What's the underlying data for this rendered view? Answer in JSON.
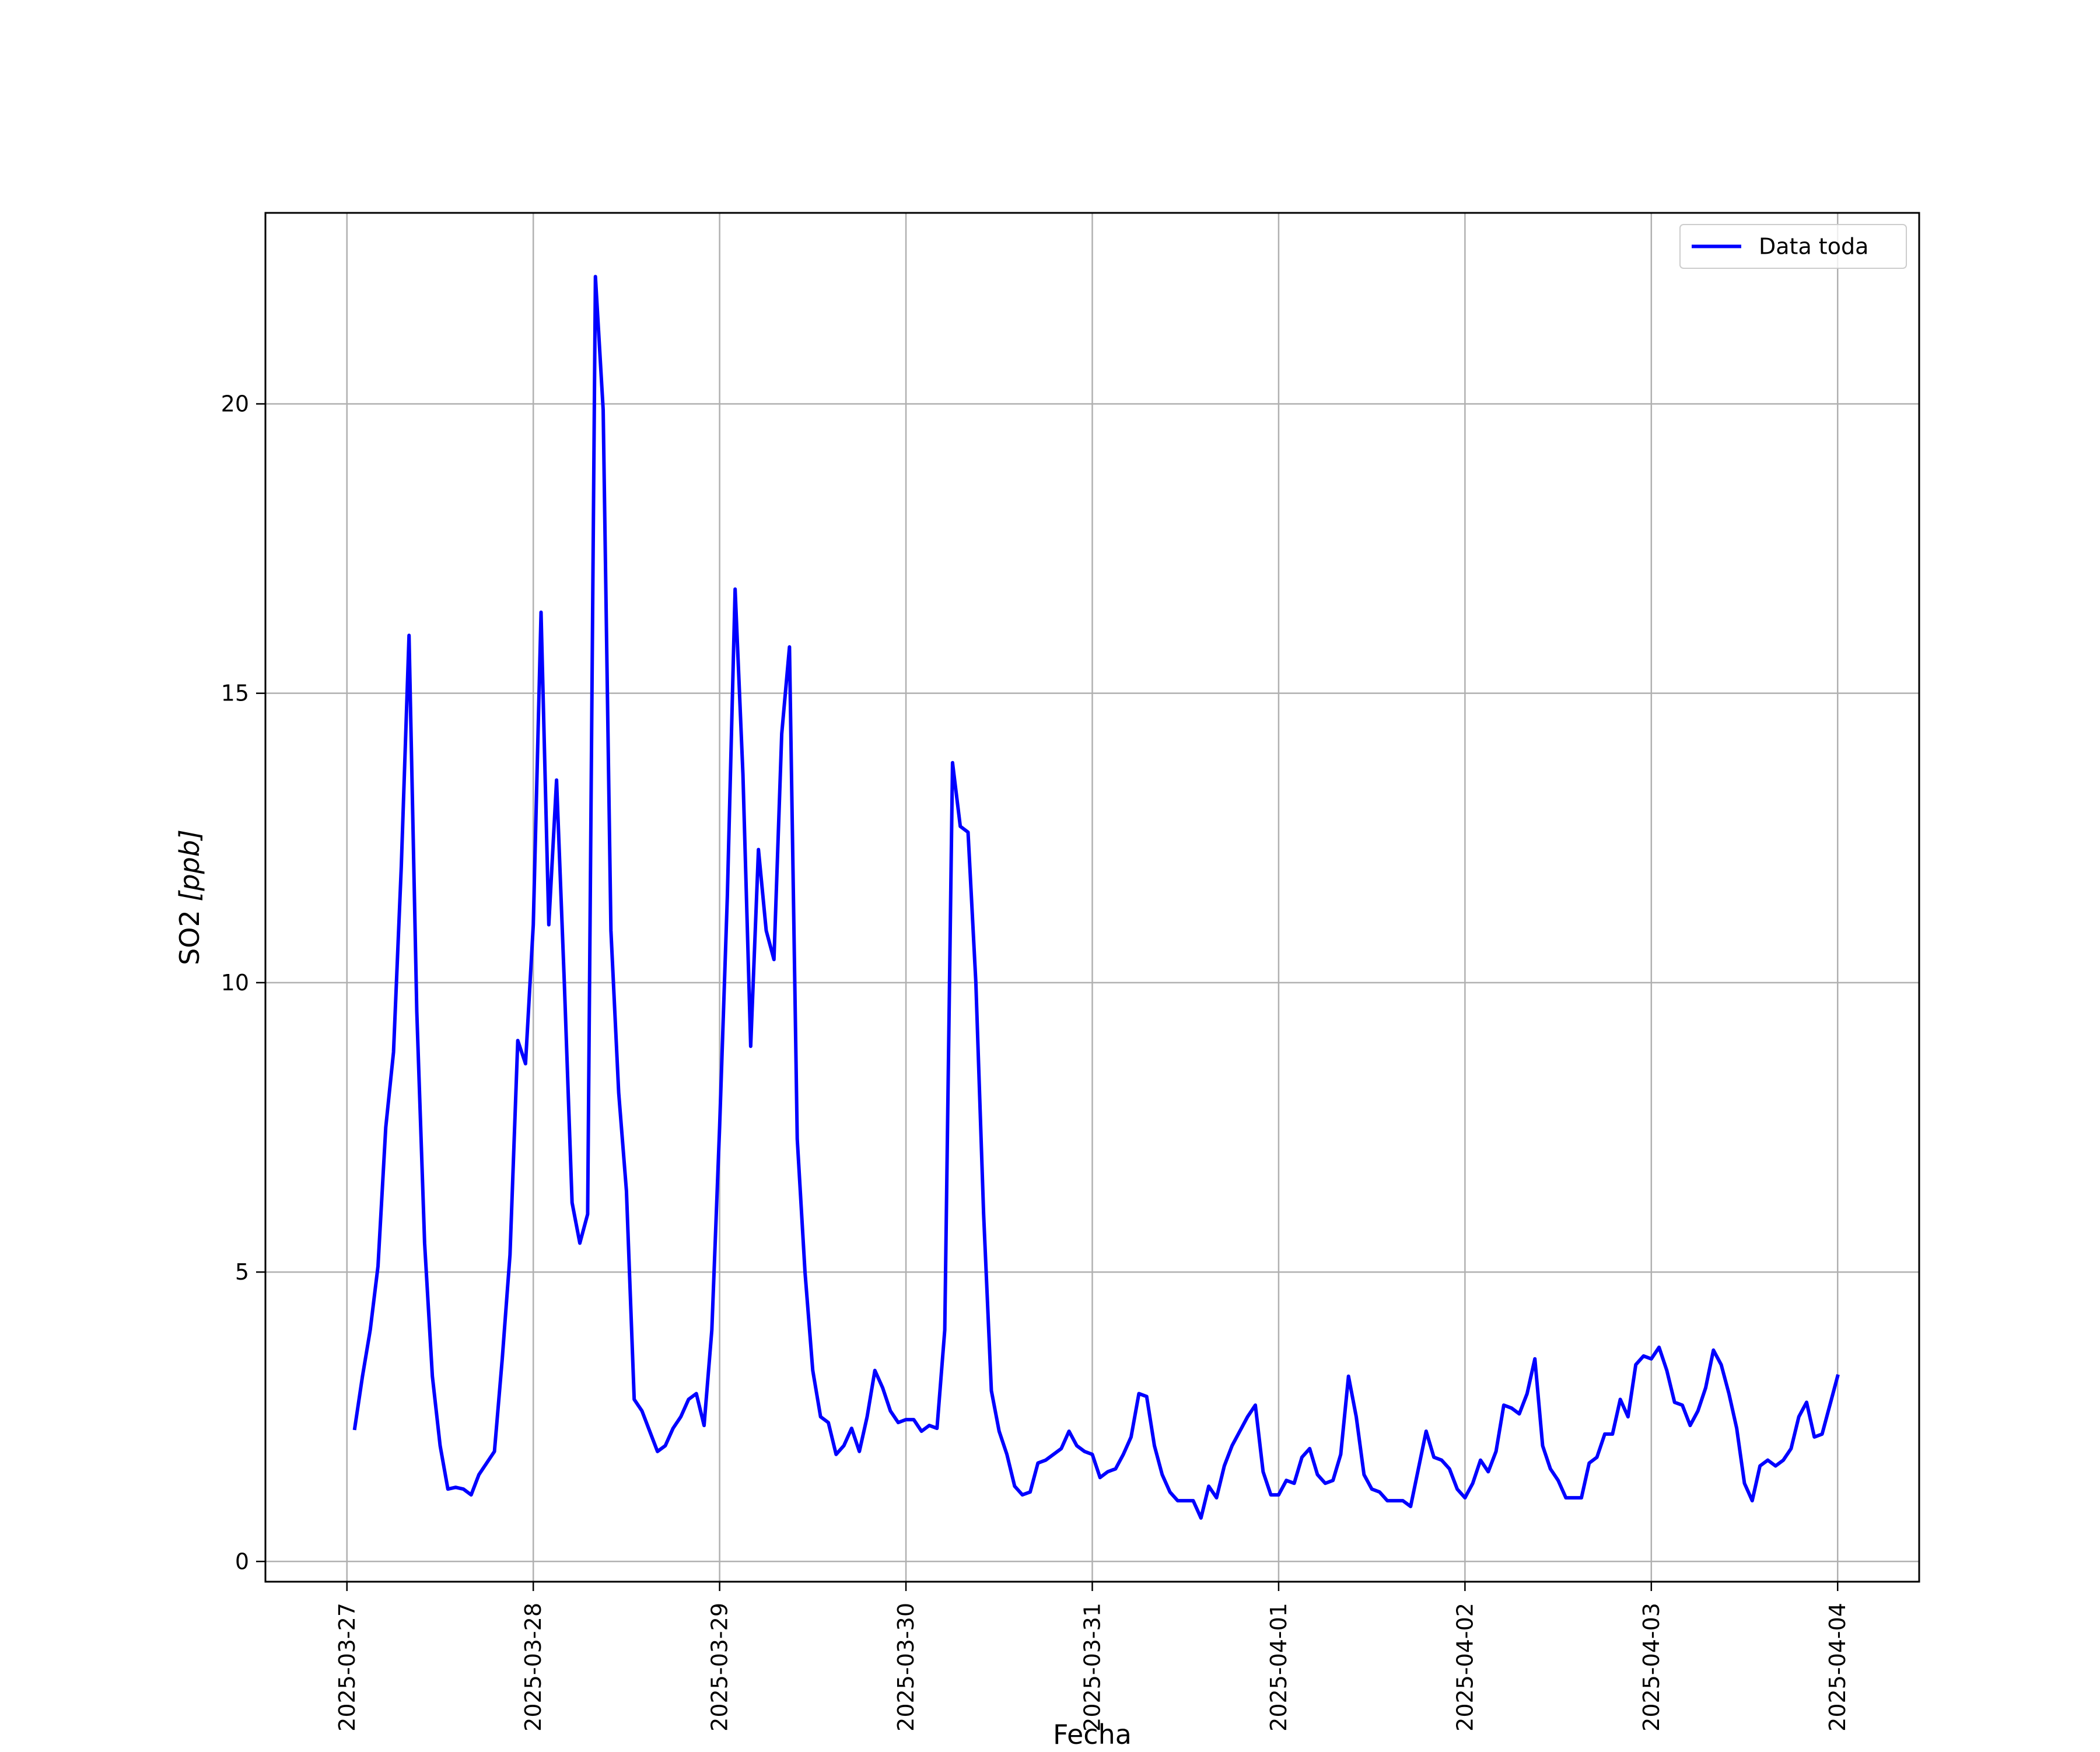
{
  "chart_data": {
    "type": "line",
    "title": "",
    "xlabel": "Fecha",
    "ylabel_main": "SO2 ",
    "ylabel_unit": "[ppb]",
    "xlim": [
      "2025-03-26 13:30",
      "2025-04-04 10:30"
    ],
    "ylim": [
      -0.35,
      23.3
    ],
    "x_ticks": [
      "2025-03-27",
      "2025-03-28",
      "2025-03-29",
      "2025-03-30",
      "2025-03-31",
      "2025-04-01",
      "2025-04-02",
      "2025-04-03",
      "2025-04-04"
    ],
    "y_ticks": [
      0,
      5,
      10,
      15,
      20
    ],
    "grid": true,
    "legend_position": "top-right",
    "colors": {
      "line": "#0000ff",
      "grid": "#b0b0b0",
      "axes": "#000000"
    },
    "series": [
      {
        "name": "Data toda",
        "x": [
          "2025-03-27 01:00",
          "2025-03-27 02:00",
          "2025-03-27 03:00",
          "2025-03-27 04:00",
          "2025-03-27 05:00",
          "2025-03-27 06:00",
          "2025-03-27 07:00",
          "2025-03-27 08:00",
          "2025-03-27 09:00",
          "2025-03-27 10:00",
          "2025-03-27 11:00",
          "2025-03-27 12:00",
          "2025-03-27 13:00",
          "2025-03-27 14:00",
          "2025-03-27 15:00",
          "2025-03-27 16:00",
          "2025-03-27 17:00",
          "2025-03-27 18:00",
          "2025-03-27 19:00",
          "2025-03-27 20:00",
          "2025-03-27 21:00",
          "2025-03-27 22:00",
          "2025-03-27 23:00",
          "2025-03-28 00:00",
          "2025-03-28 01:00",
          "2025-03-28 02:00",
          "2025-03-28 03:00",
          "2025-03-28 04:00",
          "2025-03-28 05:00",
          "2025-03-28 06:00",
          "2025-03-28 07:00",
          "2025-03-28 08:00",
          "2025-03-28 09:00",
          "2025-03-28 10:00",
          "2025-03-28 11:00",
          "2025-03-28 12:00",
          "2025-03-28 13:00",
          "2025-03-28 14:00",
          "2025-03-28 15:00",
          "2025-03-28 16:00",
          "2025-03-28 17:00",
          "2025-03-28 18:00",
          "2025-03-28 19:00",
          "2025-03-28 20:00",
          "2025-03-28 21:00",
          "2025-03-28 22:00",
          "2025-03-28 23:00",
          "2025-03-29 00:00",
          "2025-03-29 01:00",
          "2025-03-29 02:00",
          "2025-03-29 03:00",
          "2025-03-29 04:00",
          "2025-03-29 05:00",
          "2025-03-29 06:00",
          "2025-03-29 07:00",
          "2025-03-29 08:00",
          "2025-03-29 09:00",
          "2025-03-29 10:00",
          "2025-03-29 11:00",
          "2025-03-29 12:00",
          "2025-03-29 13:00",
          "2025-03-29 14:00",
          "2025-03-29 15:00",
          "2025-03-29 16:00",
          "2025-03-29 17:00",
          "2025-03-29 18:00",
          "2025-03-29 19:00",
          "2025-03-29 20:00",
          "2025-03-29 21:00",
          "2025-03-29 22:00",
          "2025-03-29 23:00",
          "2025-03-30 00:00",
          "2025-03-30 01:00",
          "2025-03-30 02:00",
          "2025-03-30 03:00",
          "2025-03-30 04:00",
          "2025-03-30 05:00",
          "2025-03-30 06:00",
          "2025-03-30 07:00",
          "2025-03-30 08:00",
          "2025-03-30 09:00",
          "2025-03-30 10:00",
          "2025-03-30 11:00",
          "2025-03-30 12:00",
          "2025-03-30 13:00",
          "2025-03-30 14:00",
          "2025-03-30 15:00",
          "2025-03-30 16:00",
          "2025-03-30 17:00",
          "2025-03-30 18:00",
          "2025-03-30 19:00",
          "2025-03-30 20:00",
          "2025-03-30 21:00",
          "2025-03-30 22:00",
          "2025-03-30 23:00",
          "2025-03-31 00:00",
          "2025-03-31 01:00",
          "2025-03-31 02:00",
          "2025-03-31 03:00",
          "2025-03-31 04:00",
          "2025-03-31 05:00",
          "2025-03-31 06:00",
          "2025-03-31 07:00",
          "2025-03-31 08:00",
          "2025-03-31 09:00",
          "2025-03-31 10:00",
          "2025-03-31 11:00",
          "2025-03-31 12:00",
          "2025-03-31 13:00",
          "2025-03-31 14:00",
          "2025-03-31 15:00",
          "2025-03-31 16:00",
          "2025-03-31 17:00",
          "2025-03-31 18:00",
          "2025-03-31 19:00",
          "2025-03-31 20:00",
          "2025-03-31 21:00",
          "2025-03-31 22:00",
          "2025-03-31 23:00",
          "2025-04-01 00:00",
          "2025-04-01 01:00",
          "2025-04-01 02:00",
          "2025-04-01 03:00",
          "2025-04-01 04:00",
          "2025-04-01 05:00",
          "2025-04-01 06:00",
          "2025-04-01 07:00",
          "2025-04-01 08:00",
          "2025-04-01 09:00",
          "2025-04-01 10:00",
          "2025-04-01 11:00",
          "2025-04-01 12:00",
          "2025-04-01 13:00",
          "2025-04-01 14:00",
          "2025-04-01 15:00",
          "2025-04-01 16:00",
          "2025-04-01 17:00",
          "2025-04-01 18:00",
          "2025-04-01 19:00",
          "2025-04-01 20:00",
          "2025-04-01 21:00",
          "2025-04-01 22:00",
          "2025-04-01 23:00",
          "2025-04-02 00:00",
          "2025-04-02 01:00",
          "2025-04-02 02:00",
          "2025-04-02 03:00",
          "2025-04-02 04:00",
          "2025-04-02 05:00",
          "2025-04-02 06:00",
          "2025-04-02 07:00",
          "2025-04-02 08:00",
          "2025-04-02 09:00",
          "2025-04-02 10:00",
          "2025-04-02 11:00",
          "2025-04-02 12:00",
          "2025-04-02 13:00",
          "2025-04-02 14:00",
          "2025-04-02 15:00",
          "2025-04-02 16:00",
          "2025-04-02 17:00",
          "2025-04-02 18:00",
          "2025-04-02 19:00",
          "2025-04-02 20:00",
          "2025-04-02 21:00",
          "2025-04-02 22:00",
          "2025-04-02 23:00",
          "2025-04-03 00:00",
          "2025-04-03 01:00",
          "2025-04-03 02:00",
          "2025-04-03 03:00",
          "2025-04-03 04:00",
          "2025-04-03 05:00",
          "2025-04-03 06:00",
          "2025-04-03 07:00",
          "2025-04-03 08:00",
          "2025-04-03 09:00",
          "2025-04-03 10:00",
          "2025-04-03 11:00",
          "2025-04-03 12:00",
          "2025-04-03 13:00",
          "2025-04-03 14:00",
          "2025-04-03 15:00",
          "2025-04-03 16:00",
          "2025-04-03 17:00",
          "2025-04-03 18:00",
          "2025-04-03 19:00",
          "2025-04-03 20:00",
          "2025-04-03 21:00",
          "2025-04-03 22:00",
          "2025-04-03 23:00",
          "2025-04-04 00:00"
        ],
        "y": [
          2.3,
          3.2,
          4.0,
          5.1,
          7.5,
          8.8,
          12.0,
          16.0,
          9.5,
          5.5,
          3.2,
          2.0,
          1.25,
          1.28,
          1.25,
          1.15,
          1.5,
          1.7,
          1.9,
          3.5,
          5.3,
          9.0,
          8.6,
          11.0,
          16.4,
          11.0,
          13.5,
          10.0,
          6.2,
          5.5,
          6.0,
          22.2,
          19.9,
          10.9,
          8.1,
          6.4,
          2.8,
          2.6,
          2.25,
          1.9,
          2.0,
          2.3,
          2.5,
          2.8,
          2.9,
          2.35,
          4.0,
          7.5,
          11.5,
          16.8,
          13.6,
          8.9,
          12.3,
          10.9,
          10.4,
          14.3,
          15.8,
          7.3,
          5.0,
          3.3,
          2.5,
          2.4,
          1.85,
          2.0,
          2.3,
          1.9,
          2.5,
          3.3,
          3.0,
          2.6,
          2.4,
          2.45,
          2.45,
          2.25,
          2.35,
          2.3,
          4.0,
          13.8,
          12.7,
          12.6,
          10.0,
          6.0,
          2.95,
          2.25,
          1.85,
          1.3,
          1.15,
          1.2,
          1.7,
          1.75,
          1.85,
          1.95,
          2.25,
          2.0,
          1.9,
          1.85,
          1.45,
          1.55,
          1.6,
          1.85,
          2.15,
          2.9,
          2.85,
          2.0,
          1.5,
          1.2,
          1.05,
          1.05,
          1.05,
          0.75,
          1.3,
          1.1,
          1.65,
          2.0,
          2.25,
          2.5,
          2.7,
          1.55,
          1.15,
          1.15,
          1.4,
          1.35,
          1.8,
          1.95,
          1.5,
          1.35,
          1.4,
          1.85,
          3.2,
          2.5,
          1.5,
          1.25,
          1.2,
          1.05,
          1.05,
          1.05,
          0.95,
          1.6,
          2.25,
          1.8,
          1.75,
          1.6,
          1.25,
          1.1,
          1.35,
          1.75,
          1.55,
          1.9,
          2.7,
          2.65,
          2.55,
          2.9,
          3.5,
          2.0,
          1.6,
          1.4,
          1.1,
          1.1,
          1.1,
          1.7,
          1.8,
          2.2,
          2.2,
          2.8,
          2.5,
          3.4,
          3.55,
          3.5,
          3.7,
          3.3,
          2.75,
          2.7,
          2.35,
          2.6,
          3.0,
          3.65,
          3.4,
          2.9,
          2.3,
          1.35,
          1.05,
          1.65,
          1.75,
          1.65,
          1.75,
          1.95,
          2.5,
          2.75,
          2.15,
          2.2,
          2.7,
          3.2
        ]
      }
    ]
  }
}
